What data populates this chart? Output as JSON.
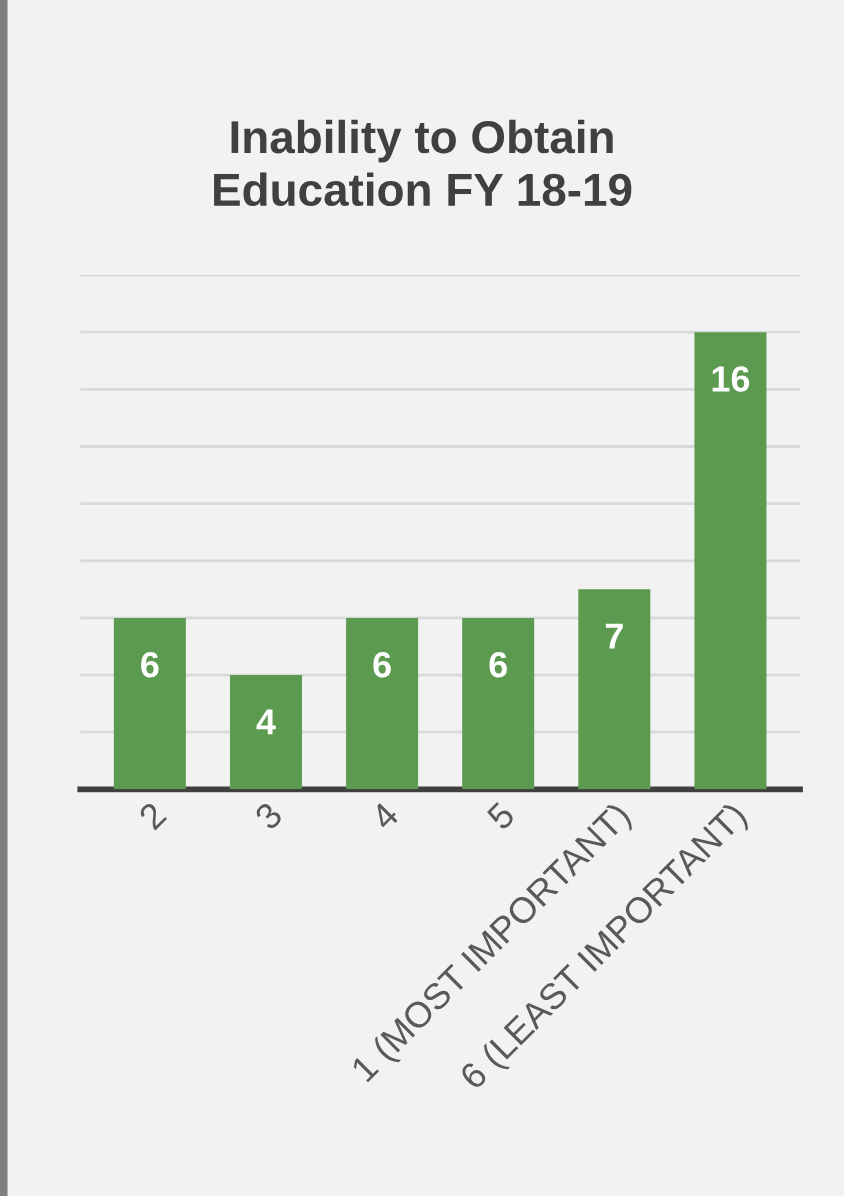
{
  "chart_data": {
    "type": "bar",
    "title": "Inability to Obtain\nEducation FY 18-19",
    "categories": [
      "2",
      "3",
      "4",
      "5",
      "1 (MOST IMPORTANT)",
      "6 (LEAST IMPORTANT)"
    ],
    "values": [
      6,
      4,
      6,
      6,
      7,
      16
    ],
    "color": "#5b9a4f",
    "ylim": [
      0,
      18
    ],
    "yticks": [
      {
        "value": 0,
        "label": null
      },
      {
        "value": 2,
        "label": null
      },
      {
        "value": 4,
        "label": null
      },
      {
        "value": 6,
        "label": null
      },
      {
        "value": 8,
        "label": null
      },
      {
        "value": 10,
        "label": null
      },
      {
        "value": 12,
        "label": null
      },
      {
        "value": 14,
        "label": null
      },
      {
        "value": 16,
        "label": null
      },
      {
        "value": 18,
        "label": null
      }
    ],
    "grid": "y",
    "data_labels": true,
    "tick_labels": "x"
  }
}
